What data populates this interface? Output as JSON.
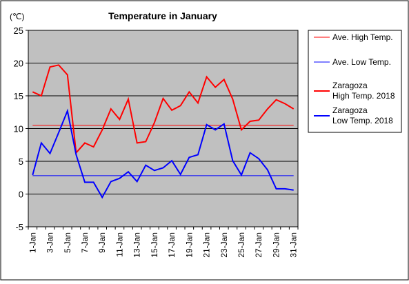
{
  "chart_data": {
    "type": "line",
    "title": "Temperature in January",
    "unit_label": "(℃)",
    "ylim": [
      -5,
      25
    ],
    "y_ticks": [
      25,
      20,
      15,
      10,
      5,
      0,
      -5
    ],
    "grid": "horizontal",
    "legend_position": "right",
    "x": [
      "1-Jan",
      "2-Jan",
      "3-Jan",
      "4-Jan",
      "5-Jan",
      "6-Jan",
      "7-Jan",
      "8-Jan",
      "9-Jan",
      "10-Jan",
      "11-Jan",
      "12-Jan",
      "13-Jan",
      "14-Jan",
      "15-Jan",
      "16-Jan",
      "17-Jan",
      "18-Jan",
      "19-Jan",
      "20-Jan",
      "21-Jan",
      "22-Jan",
      "23-Jan",
      "24-Jan",
      "25-Jan",
      "26-Jan",
      "27-Jan",
      "28-Jan",
      "29-Jan",
      "30-Jan",
      "31-Jan"
    ],
    "x_tick_labels": [
      "1-Jan",
      "3-Jan",
      "5-Jan",
      "7-Jan",
      "9-Jan",
      "11-Jan",
      "13-Jan",
      "15-Jan",
      "17-Jan",
      "19-Jan",
      "21-Jan",
      "23-Jan",
      "25-Jan",
      "27-Jan",
      "29-Jan",
      "31-Jan"
    ],
    "series": [
      {
        "name": "Ave. High Temp.",
        "color": "#ff0000",
        "style": "thin",
        "values": [
          10.5,
          10.5,
          10.5,
          10.5,
          10.5,
          10.5,
          10.5,
          10.5,
          10.5,
          10.5,
          10.5,
          10.5,
          10.5,
          10.5,
          10.5,
          10.5,
          10.5,
          10.5,
          10.5,
          10.5,
          10.5,
          10.5,
          10.5,
          10.5,
          10.5,
          10.5,
          10.5,
          10.5,
          10.5,
          10.5,
          10.5
        ]
      },
      {
        "name": "Ave. Low Temp.",
        "color": "#0000ff",
        "style": "thin",
        "values": [
          2.8,
          2.8,
          2.8,
          2.8,
          2.8,
          2.8,
          2.8,
          2.8,
          2.8,
          2.8,
          2.8,
          2.8,
          2.8,
          2.8,
          2.8,
          2.8,
          2.8,
          2.8,
          2.8,
          2.8,
          2.8,
          2.8,
          2.8,
          2.8,
          2.8,
          2.8,
          2.8,
          2.8,
          2.8,
          2.8,
          2.8
        ]
      },
      {
        "name": "Zaragoza High Temp. 2018",
        "legend_lines": [
          "Zaragoza",
          "High Temp. 2018"
        ],
        "color": "#ff0000",
        "style": "thick",
        "values": [
          15.6,
          15.0,
          19.4,
          19.7,
          18.2,
          6.3,
          7.8,
          7.2,
          9.8,
          13.0,
          11.4,
          14.5,
          7.8,
          8.0,
          10.9,
          14.6,
          12.8,
          13.5,
          15.6,
          13.9,
          17.9,
          16.3,
          17.5,
          14.5,
          9.8,
          11.1,
          11.3,
          13.0,
          14.4,
          13.8,
          13.0
        ]
      },
      {
        "name": "Zaragoza Low Temp. 2018",
        "legend_lines": [
          "Zaragoza",
          "Low Temp. 2018"
        ],
        "color": "#0000ff",
        "style": "thick",
        "values": [
          2.9,
          7.8,
          6.2,
          9.4,
          12.7,
          6.0,
          1.8,
          1.8,
          -0.5,
          1.9,
          2.4,
          3.4,
          1.9,
          4.4,
          3.6,
          4.0,
          5.1,
          3.0,
          5.6,
          6.0,
          10.6,
          9.8,
          10.7,
          5.1,
          2.9,
          6.3,
          5.4,
          3.7,
          0.8,
          0.8,
          0.6
        ]
      }
    ]
  }
}
